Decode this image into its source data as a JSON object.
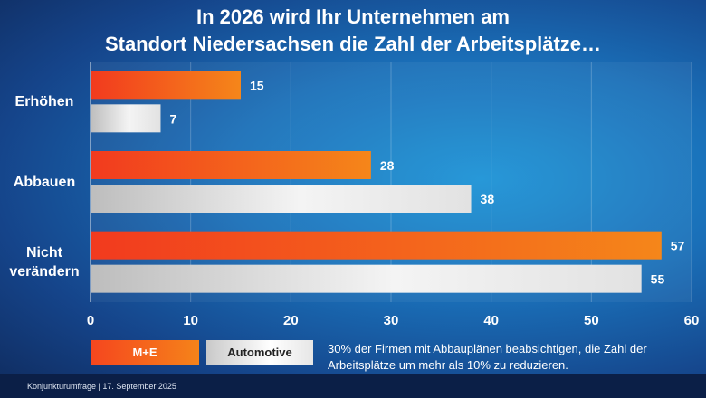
{
  "title": {
    "line1": "In 2026 wird Ihr Unternehmen am",
    "line2": "Standort Niedersachsen die Zahl der Arbeitsplätze…"
  },
  "chart_data": {
    "type": "bar",
    "orientation": "horizontal",
    "categories": [
      "Erhöhen",
      "Abbauen",
      "Nicht verändern"
    ],
    "category_lines": [
      [
        "Erhöhen"
      ],
      [
        "Abbauen"
      ],
      [
        "Nicht",
        "verändern"
      ]
    ],
    "series": [
      {
        "name": "M+E",
        "values": [
          15,
          28,
          57
        ],
        "color": "#f5641c"
      },
      {
        "name": "Automotive",
        "values": [
          7,
          38,
          55
        ],
        "color": "#e6e6e6"
      }
    ],
    "xlim": [
      0,
      60
    ],
    "xticks": [
      "0",
      "10",
      "20",
      "30",
      "40",
      "50",
      "60"
    ],
    "grid": true,
    "legend_placement": "bottom-left"
  },
  "legend": {
    "me_label": "M+E",
    "auto_label": "Automotive"
  },
  "note": "30% der Firmen mit Abbauplänen beabsichtigen, die Zahl der Arbeitsplätze um mehr als 10% zu reduzieren.",
  "footer": "Konjunkturumfrage |  17. September 2025"
}
